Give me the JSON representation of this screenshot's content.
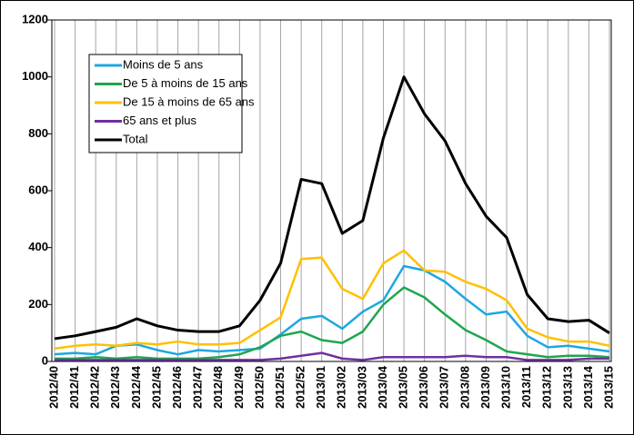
{
  "chart_data": {
    "type": "line",
    "categories": [
      "2012/40",
      "2012/41",
      "2012/42",
      "2012/43",
      "2012/44",
      "2012/45",
      "2012/46",
      "2012/47",
      "2012/48",
      "2012/49",
      "2012/50",
      "2012/51",
      "2012/52",
      "2013/01",
      "2013/02",
      "2013/03",
      "2013/04",
      "2013/05",
      "2013/06",
      "2013/07",
      "2013/08",
      "2013/09",
      "2013/10",
      "2013/11",
      "2013/12",
      "2013/13",
      "2013/14",
      "2013/15"
    ],
    "series": [
      {
        "name": "Moins de 5 ans",
        "color": "#1ea7e0",
        "values": [
          25,
          30,
          25,
          55,
          60,
          40,
          25,
          40,
          35,
          40,
          45,
          95,
          150,
          160,
          115,
          175,
          215,
          335,
          320,
          280,
          220,
          165,
          175,
          90,
          50,
          55,
          45,
          35
        ]
      },
      {
        "name": "De 5 à moins de 15 ans",
        "color": "#1fa64e",
        "values": [
          10,
          10,
          15,
          10,
          15,
          10,
          10,
          10,
          15,
          25,
          50,
          90,
          105,
          75,
          65,
          105,
          200,
          260,
          225,
          165,
          110,
          75,
          35,
          25,
          15,
          20,
          20,
          15
        ]
      },
      {
        "name": "De 15 à moins de 65 ans",
        "color": "#ffc000",
        "values": [
          45,
          55,
          60,
          55,
          65,
          60,
          70,
          60,
          60,
          65,
          110,
          155,
          360,
          365,
          255,
          220,
          345,
          390,
          320,
          315,
          280,
          255,
          215,
          115,
          85,
          70,
          70,
          55
        ]
      },
      {
        "name": "65 ans et plus",
        "color": "#7030a0",
        "values": [
          5,
          5,
          5,
          5,
          5,
          5,
          5,
          5,
          5,
          5,
          5,
          10,
          20,
          30,
          10,
          5,
          15,
          15,
          15,
          15,
          20,
          15,
          15,
          5,
          5,
          5,
          10,
          10
        ]
      },
      {
        "name": "Total",
        "color": "#000000",
        "values": [
          80,
          90,
          105,
          120,
          150,
          125,
          110,
          105,
          105,
          125,
          215,
          345,
          640,
          625,
          450,
          495,
          785,
          1000,
          870,
          775,
          625,
          510,
          435,
          235,
          150,
          140,
          145,
          100
        ]
      }
    ],
    "ylim": [
      0,
      1200
    ],
    "yticks": [
      0,
      200,
      400,
      600,
      800,
      1000,
      1200
    ],
    "xgrid": true
  }
}
